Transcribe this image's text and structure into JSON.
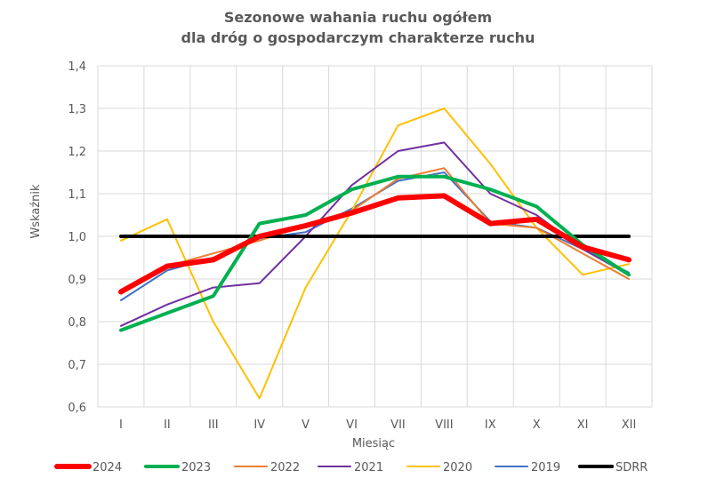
{
  "chart_data": {
    "type": "line",
    "title_lines": [
      "Sezonowe wahania ruchu ogółem",
      "dla dróg o gospodarczym charakterze ruchu"
    ],
    "xlabel": "Miesiąc",
    "ylabel": "Wskaźnik",
    "categories": [
      "I",
      "II",
      "III",
      "IV",
      "V",
      "VI",
      "VII",
      "VIII",
      "IX",
      "X",
      "XI",
      "XII"
    ],
    "ylim": [
      0.6,
      1.4
    ],
    "yticks": [
      "0,6",
      "0,7",
      "0,8",
      "0,9",
      "1,0",
      "1,1",
      "1,2",
      "1,3",
      "1,4"
    ],
    "grid": "vertical and horizontal gridlines",
    "legend_position": "bottom",
    "series": [
      {
        "name": "2024",
        "color": "#ff0000",
        "weight": "heavy",
        "values": [
          0.87,
          0.93,
          0.945,
          1.0,
          1.025,
          1.055,
          1.09,
          1.095,
          1.03,
          1.04,
          0.975,
          0.945
        ]
      },
      {
        "name": "2023",
        "color": "#00b050",
        "weight": "bold",
        "values": [
          0.78,
          0.82,
          0.86,
          1.03,
          1.05,
          1.11,
          1.14,
          1.14,
          1.11,
          1.07,
          0.98,
          0.91
        ]
      },
      {
        "name": "2022",
        "color": "#ed7d31",
        "weight": "thin",
        "values": [
          0.865,
          0.93,
          0.96,
          0.99,
          1.025,
          1.06,
          1.135,
          1.16,
          1.03,
          1.02,
          0.96,
          0.9
        ]
      },
      {
        "name": "2021",
        "color": "#7030a0",
        "weight": "thin",
        "values": [
          0.79,
          0.84,
          0.88,
          0.89,
          1.0,
          1.12,
          1.2,
          1.22,
          1.1,
          1.05,
          0.97,
          0.91
        ]
      },
      {
        "name": "2020",
        "color": "#ffc000",
        "weight": "thin",
        "values": [
          0.99,
          1.04,
          0.8,
          0.62,
          0.88,
          1.06,
          1.26,
          1.3,
          1.17,
          1.02,
          0.91,
          0.935
        ]
      },
      {
        "name": "2019",
        "color": "#4472c4",
        "weight": "thin",
        "values": [
          0.85,
          0.92,
          0.95,
          0.995,
          1.01,
          1.065,
          1.13,
          1.15,
          1.035,
          1.02,
          0.97,
          0.915
        ]
      },
      {
        "name": "SDRR",
        "color": "#000000",
        "weight": "bold",
        "values": [
          1.0,
          1.0,
          1.0,
          1.0,
          1.0,
          1.0,
          1.0,
          1.0,
          1.0,
          1.0,
          1.0,
          1.0
        ]
      }
    ]
  }
}
